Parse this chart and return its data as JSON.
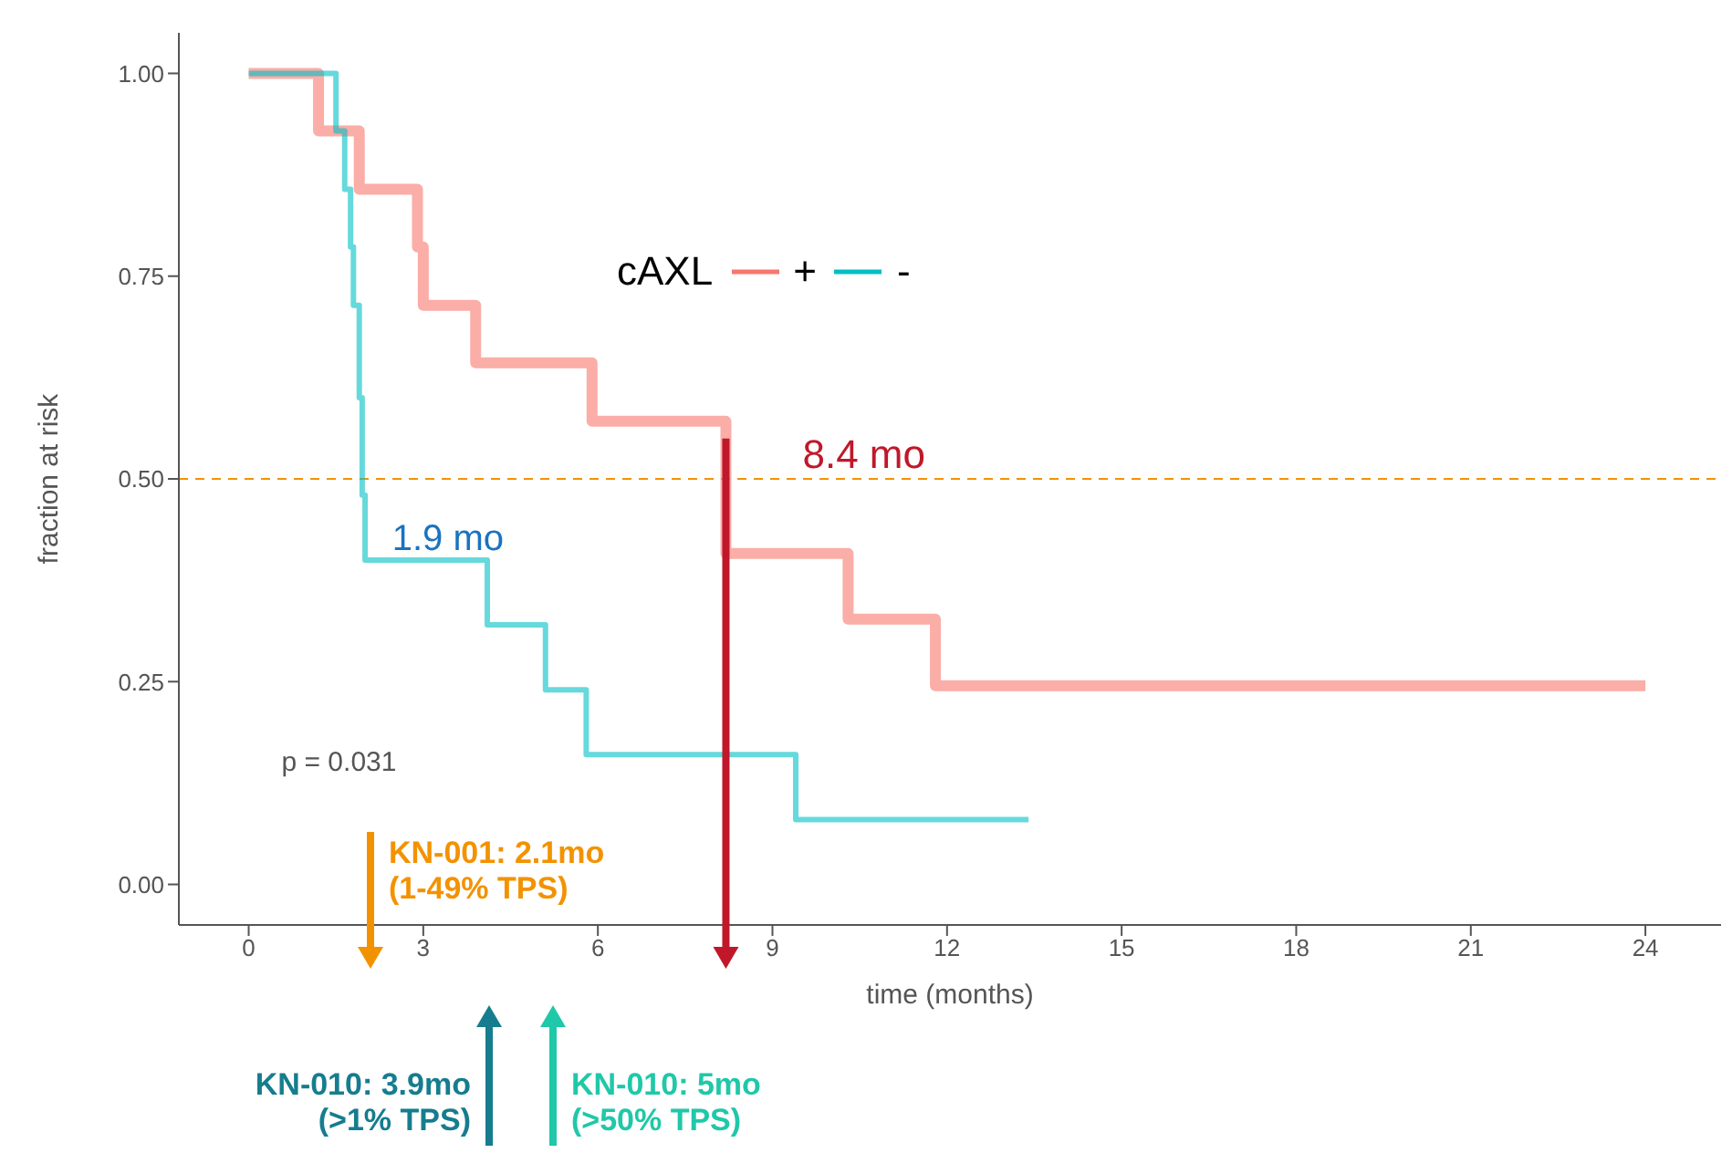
{
  "chart_data": {
    "type": "step",
    "xlabel": "time (months)",
    "ylabel": "fraction at risk",
    "legend_title": "cAXL",
    "legend": "top",
    "series": [
      {
        "name": "+",
        "color": "#f8766d",
        "x": [
          0,
          1.2,
          1.9,
          2.9,
          3.0,
          3.9,
          5.9,
          8.2,
          10.3,
          11.8,
          24.0
        ],
        "values": [
          1,
          0.929,
          0.857,
          0.786,
          0.714,
          0.643,
          0.571,
          0.408,
          0.327,
          0.245,
          0.245
        ]
      },
      {
        "name": "-",
        "color": "#00bfc4",
        "x": [
          0,
          1.5,
          1.65,
          1.75,
          1.8,
          1.9,
          1.95,
          2.0,
          4.1,
          5.1,
          5.8,
          9.4,
          13.4
        ],
        "values": [
          1,
          0.929,
          0.857,
          0.786,
          0.714,
          0.6,
          0.48,
          0.4,
          0.32,
          0.24,
          0.16,
          0.08,
          0.08
        ]
      }
    ],
    "xlim": [
      -1.2,
      25.3
    ],
    "xticks": [
      0,
      3,
      6,
      9,
      12,
      15,
      18,
      21,
      24
    ],
    "ylim": [
      -0.05,
      1.05
    ],
    "yticks": [
      {
        "value": 0,
        "label": "0.00"
      },
      {
        "value": 0.25,
        "label": "0.25"
      },
      {
        "value": 0.5,
        "label": "0.50"
      },
      {
        "value": 0.75,
        "label": "0.75"
      },
      {
        "value": 1,
        "label": "1.00"
      }
    ],
    "grid": false,
    "ref_lines": [
      {
        "axis": "y",
        "value": 0.5,
        "label": null,
        "color": "#f39200",
        "line_style": "dashed"
      }
    ],
    "annotations": [
      {
        "text": "8.4 mo",
        "x": 8.2,
        "y": 0.575
      },
      {
        "text": "1.9 mo",
        "x": 1.9,
        "y": 0.5
      },
      "p = 0.031",
      "KN-001: 2.1mo\n(1-49% TPS)",
      "KN-010: 3.9mo\n(>1% TPS)",
      "KN-010: 5mo\n(>50% TPS)"
    ]
  }
}
